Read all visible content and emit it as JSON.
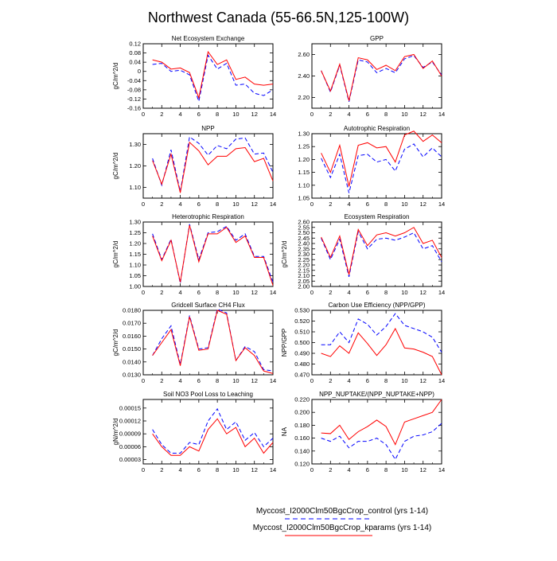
{
  "title": "Northwest Canada (55-66.5N,125-100W)",
  "legend": {
    "placement": "bottom-center",
    "entries": [
      {
        "label": "Myccost_I2000Clm50BgcCrop_control (yrs 1-14)",
        "color": "#0000ff",
        "dash": "dashed"
      },
      {
        "label": "Myccost_I2000Clm50BgcCrop_kparams (yrs 1-14)",
        "color": "#ff0000",
        "dash": "solid"
      }
    ]
  },
  "chart_data": [
    {
      "type": "line",
      "title": "Net Ecosystem Exchange",
      "ylabel": "gC/m^2/d",
      "xlim": [
        0,
        14
      ],
      "ylim": [
        -0.16,
        0.12
      ],
      "xticks": [
        0,
        2,
        4,
        6,
        8,
        10,
        12,
        14
      ],
      "yticks": [
        -0.16,
        -0.12,
        -0.08,
        -0.04,
        0,
        0.04,
        0.08,
        0.12
      ],
      "yticklabels": [
        "-0.16",
        "-0.12",
        "-0.08",
        "-0.04",
        "0",
        "0.04",
        "0.08",
        "0.12"
      ],
      "x": [
        1,
        2,
        3,
        4,
        5,
        6,
        7,
        8,
        9,
        10,
        11,
        12,
        13,
        14
      ],
      "series": [
        {
          "values": [
            0.03,
            0.035,
            0.0,
            0.005,
            -0.015,
            -0.13,
            0.07,
            0.01,
            0.035,
            -0.06,
            -0.055,
            -0.095,
            -0.105,
            -0.08
          ]
        },
        {
          "values": [
            0.05,
            0.04,
            0.01,
            0.015,
            -0.005,
            -0.115,
            0.085,
            0.03,
            0.05,
            -0.035,
            -0.025,
            -0.055,
            -0.06,
            -0.055
          ]
        }
      ]
    },
    {
      "type": "line",
      "title": "GPP",
      "ylabel": "",
      "xlim": [
        0,
        14
      ],
      "ylim": [
        2.1,
        2.7
      ],
      "xticks": [
        0,
        2,
        4,
        6,
        8,
        10,
        12,
        14
      ],
      "yticks": [
        2.2,
        2.4,
        2.6
      ],
      "yticklabels": [
        "2.20",
        "2.40",
        "2.60"
      ],
      "x": [
        1,
        2,
        3,
        4,
        5,
        6,
        7,
        8,
        9,
        10,
        11,
        12,
        13,
        14
      ],
      "series": [
        {
          "values": [
            2.45,
            2.25,
            2.5,
            2.16,
            2.55,
            2.53,
            2.43,
            2.47,
            2.43,
            2.56,
            2.59,
            2.48,
            2.53,
            2.41
          ]
        },
        {
          "values": [
            2.45,
            2.26,
            2.51,
            2.17,
            2.57,
            2.55,
            2.46,
            2.5,
            2.45,
            2.58,
            2.6,
            2.47,
            2.54,
            2.4
          ]
        }
      ]
    },
    {
      "type": "line",
      "title": "NPP",
      "ylabel": "gC/m^2/d",
      "xlim": [
        0,
        14
      ],
      "ylim": [
        1.05,
        1.35
      ],
      "xticks": [
        0,
        2,
        4,
        6,
        8,
        10,
        12,
        14
      ],
      "yticks": [
        1.1,
        1.2,
        1.3
      ],
      "yticklabels": [
        "1.10",
        "1.20",
        "1.30"
      ],
      "x": [
        1,
        2,
        3,
        4,
        5,
        6,
        7,
        8,
        9,
        10,
        11,
        12,
        13,
        14
      ],
      "series": [
        {
          "values": [
            1.235,
            1.11,
            1.275,
            1.08,
            1.335,
            1.305,
            1.25,
            1.295,
            1.28,
            1.325,
            1.33,
            1.255,
            1.26,
            1.17
          ]
        },
        {
          "values": [
            1.225,
            1.115,
            1.255,
            1.075,
            1.31,
            1.27,
            1.205,
            1.245,
            1.245,
            1.28,
            1.285,
            1.22,
            1.235,
            1.13
          ]
        }
      ]
    },
    {
      "type": "line",
      "title": "Autotrophic Respiration",
      "ylabel": "",
      "xlim": [
        0,
        14
      ],
      "ylim": [
        1.05,
        1.3
      ],
      "xticks": [
        0,
        2,
        4,
        6,
        8,
        10,
        12,
        14
      ],
      "yticks": [
        1.05,
        1.1,
        1.15,
        1.2,
        1.25,
        1.3
      ],
      "yticklabels": [
        "1.05",
        "1.10",
        "1.15",
        "1.20",
        "1.25",
        "1.30"
      ],
      "x": [
        1,
        2,
        3,
        4,
        5,
        6,
        7,
        8,
        9,
        10,
        11,
        12,
        13,
        14
      ],
      "series": [
        {
          "values": [
            1.205,
            1.13,
            1.22,
            1.07,
            1.215,
            1.22,
            1.19,
            1.2,
            1.155,
            1.24,
            1.26,
            1.21,
            1.245,
            1.21
          ]
        },
        {
          "values": [
            1.225,
            1.15,
            1.255,
            1.095,
            1.255,
            1.265,
            1.245,
            1.25,
            1.19,
            1.295,
            1.31,
            1.27,
            1.295,
            1.265
          ]
        }
      ]
    },
    {
      "type": "line",
      "title": "Heterotrophic Respiration",
      "ylabel": "gC/m^2/d",
      "xlim": [
        0,
        14
      ],
      "ylim": [
        1.0,
        1.3
      ],
      "xticks": [
        0,
        2,
        4,
        6,
        8,
        10,
        12,
        14
      ],
      "yticks": [
        1.0,
        1.05,
        1.1,
        1.15,
        1.2,
        1.25,
        1.3
      ],
      "yticklabels": [
        "1.00",
        "1.05",
        "1.10",
        "1.15",
        "1.20",
        "1.25",
        "1.30"
      ],
      "x": [
        1,
        2,
        3,
        4,
        5,
        6,
        7,
        8,
        9,
        10,
        11,
        12,
        13,
        14
      ],
      "series": [
        {
          "values": [
            1.245,
            1.125,
            1.22,
            1.015,
            1.29,
            1.125,
            1.25,
            1.255,
            1.28,
            1.215,
            1.245,
            1.14,
            1.14,
            1.02
          ]
        },
        {
          "values": [
            1.235,
            1.12,
            1.215,
            1.02,
            1.285,
            1.115,
            1.245,
            1.245,
            1.275,
            1.205,
            1.235,
            1.135,
            1.135,
            1.005
          ]
        }
      ]
    },
    {
      "type": "line",
      "title": "Ecosystem Respiration",
      "ylabel": "gC/m^2/d",
      "xlim": [
        0,
        14
      ],
      "ylim": [
        2.0,
        2.6
      ],
      "xticks": [
        0,
        2,
        4,
        6,
        8,
        10,
        12,
        14
      ],
      "yticks": [
        2.0,
        2.05,
        2.1,
        2.15,
        2.2,
        2.25,
        2.3,
        2.35,
        2.4,
        2.45,
        2.5,
        2.55,
        2.6
      ],
      "yticklabels": [
        "2.00",
        "2.05",
        "2.10",
        "2.15",
        "2.20",
        "2.25",
        "2.30",
        "2.35",
        "2.40",
        "2.45",
        "2.50",
        "2.55",
        "2.60"
      ],
      "x": [
        1,
        2,
        3,
        4,
        5,
        6,
        7,
        8,
        9,
        10,
        11,
        12,
        13,
        14
      ],
      "series": [
        {
          "values": [
            2.45,
            2.25,
            2.44,
            2.09,
            2.51,
            2.35,
            2.44,
            2.45,
            2.43,
            2.46,
            2.5,
            2.35,
            2.38,
            2.23
          ]
        },
        {
          "values": [
            2.46,
            2.27,
            2.47,
            2.11,
            2.53,
            2.38,
            2.48,
            2.5,
            2.47,
            2.5,
            2.55,
            2.4,
            2.43,
            2.27
          ]
        }
      ]
    },
    {
      "type": "line",
      "title": "Gridcell Surface CH4 Flux",
      "ylabel": "gC/m^2/d",
      "xlim": [
        0,
        14
      ],
      "ylim": [
        0.013,
        0.018
      ],
      "xticks": [
        0,
        2,
        4,
        6,
        8,
        10,
        12,
        14
      ],
      "yticks": [
        0.013,
        0.014,
        0.015,
        0.016,
        0.017,
        0.018
      ],
      "yticklabels": [
        "0.0130",
        "0.0140",
        "0.0150",
        "0.0160",
        "0.0170",
        "0.0180"
      ],
      "x": [
        1,
        2,
        3,
        4,
        5,
        6,
        7,
        8,
        9,
        10,
        11,
        12,
        13,
        14
      ],
      "series": [
        {
          "values": [
            0.0145,
            0.0158,
            0.0168,
            0.0138,
            0.0176,
            0.015,
            0.0151,
            0.0181,
            0.0178,
            0.0141,
            0.0152,
            0.0148,
            0.0134,
            0.0133
          ]
        },
        {
          "values": [
            0.0145,
            0.0155,
            0.0165,
            0.0137,
            0.0175,
            0.0149,
            0.015,
            0.018,
            0.0177,
            0.0141,
            0.0151,
            0.0145,
            0.0133,
            0.0131
          ]
        }
      ]
    },
    {
      "type": "line",
      "title": "Carbon Use Efficiency (NPP/GPP)",
      "ylabel": "NPP/GPP",
      "xlim": [
        0,
        14
      ],
      "ylim": [
        0.47,
        0.53
      ],
      "xticks": [
        0,
        2,
        4,
        6,
        8,
        10,
        12,
        14
      ],
      "yticks": [
        0.47,
        0.48,
        0.49,
        0.5,
        0.51,
        0.52,
        0.53
      ],
      "yticklabels": [
        "0.470",
        "0.480",
        "0.490",
        "0.500",
        "0.510",
        "0.520",
        "0.530"
      ],
      "x": [
        1,
        2,
        3,
        4,
        5,
        6,
        7,
        8,
        9,
        10,
        11,
        12,
        13,
        14
      ],
      "series": [
        {
          "values": [
            0.498,
            0.498,
            0.51,
            0.5,
            0.522,
            0.517,
            0.507,
            0.515,
            0.527,
            0.516,
            0.513,
            0.51,
            0.505,
            0.491
          ]
        },
        {
          "values": [
            0.49,
            0.487,
            0.497,
            0.49,
            0.509,
            0.499,
            0.488,
            0.498,
            0.513,
            0.495,
            0.494,
            0.491,
            0.487,
            0.47
          ]
        }
      ]
    },
    {
      "type": "line",
      "title": "Soil NO3 Pool Loss to Leaching",
      "ylabel": "gN/m^2/d",
      "xlim": [
        0,
        14
      ],
      "ylim": [
        2e-05,
        0.00017
      ],
      "xticks": [
        0,
        2,
        4,
        6,
        8,
        10,
        12,
        14
      ],
      "yticks": [
        3e-05,
        6e-05,
        9e-05,
        0.00012,
        0.00015
      ],
      "yticklabels": [
        "0.00003",
        "0.00006",
        "0.00009",
        "0.00012",
        "0.00015"
      ],
      "x": [
        1,
        2,
        3,
        4,
        5,
        6,
        7,
        8,
        9,
        10,
        11,
        12,
        13,
        14
      ],
      "series": [
        {
          "values": [
            0.0001,
            6.5e-05,
            4.5e-05,
            4.5e-05,
            7e-05,
            6.5e-05,
            0.00012,
            0.000148,
            0.0001,
            0.000118,
            7.5e-05,
            9.3e-05,
            6e-05,
            8e-05
          ]
        },
        {
          "values": [
            9e-05,
            6e-05,
            4e-05,
            4e-05,
            6e-05,
            5e-05,
            0.0001,
            0.000125,
            9e-05,
            0.000105,
            6e-05,
            8e-05,
            4.5e-05,
            7e-05
          ]
        }
      ]
    },
    {
      "type": "line",
      "title": "NPP_NUPTAKE/(NPP_NUPTAKE+NPP)",
      "ylabel": "NA",
      "xlim": [
        0,
        14
      ],
      "ylim": [
        0.12,
        0.22
      ],
      "xticks": [
        0,
        2,
        4,
        6,
        8,
        10,
        12,
        14
      ],
      "yticks": [
        0.12,
        0.14,
        0.16,
        0.18,
        0.2,
        0.22
      ],
      "yticklabels": [
        "0.120",
        "0.140",
        "0.160",
        "0.180",
        "0.200",
        "0.220"
      ],
      "x": [
        1,
        2,
        3,
        4,
        5,
        6,
        7,
        8,
        9,
        10,
        11,
        12,
        13,
        14
      ],
      "series": [
        {
          "values": [
            0.16,
            0.155,
            0.163,
            0.145,
            0.155,
            0.155,
            0.16,
            0.15,
            0.127,
            0.155,
            0.163,
            0.165,
            0.17,
            0.183
          ]
        },
        {
          "values": [
            0.168,
            0.167,
            0.18,
            0.158,
            0.17,
            0.178,
            0.188,
            0.178,
            0.15,
            0.185,
            0.19,
            0.195,
            0.2,
            0.22
          ]
        }
      ]
    }
  ]
}
